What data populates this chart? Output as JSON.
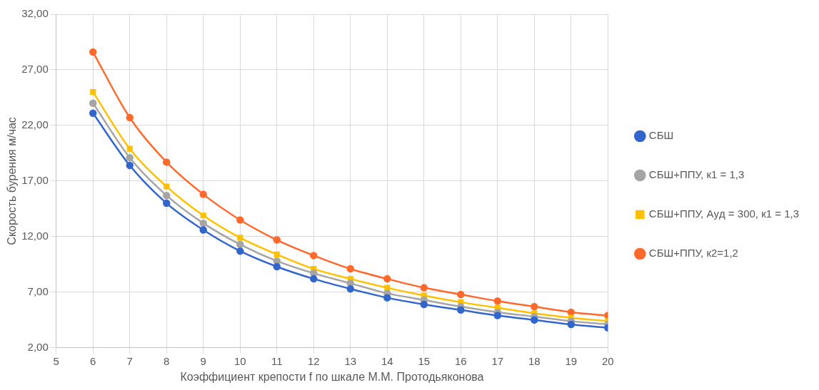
{
  "chart_data": {
    "type": "line",
    "xlabel": "Коэффициент крепости f по шкале М.М. Протодьяконова",
    "ylabel": "Скорость бурения м/час",
    "x": [
      6,
      7,
      8,
      9,
      10,
      11,
      12,
      13,
      14,
      15,
      16,
      17,
      18,
      19,
      20
    ],
    "xlim": [
      5,
      20
    ],
    "xticks": [
      5,
      6,
      7,
      8,
      9,
      10,
      11,
      12,
      13,
      14,
      15,
      16,
      17,
      18,
      19,
      20
    ],
    "ylim": [
      2,
      32
    ],
    "yticks": [
      {
        "value": 2,
        "label": "2,00"
      },
      {
        "value": 7,
        "label": "7,00"
      },
      {
        "value": 12,
        "label": "12,00"
      },
      {
        "value": 17,
        "label": "17,00"
      },
      {
        "value": 22,
        "label": "22,00"
      },
      {
        "value": 27,
        "label": "27,00"
      },
      {
        "value": 32,
        "label": "32,00"
      }
    ],
    "grid": true,
    "legend": "right",
    "series": [
      {
        "name": "СБШ",
        "color": "#3366cc",
        "marker": "circle",
        "values": [
          23.1,
          18.4,
          15.0,
          12.6,
          10.7,
          9.3,
          8.2,
          7.3,
          6.5,
          5.9,
          5.4,
          4.9,
          4.5,
          4.1,
          3.8
        ]
      },
      {
        "name": "СБШ+ППУ, к1 = 1,3",
        "color": "#a5a5a5",
        "marker": "circle",
        "values": [
          24.0,
          19.1,
          15.7,
          13.2,
          11.3,
          9.8,
          8.7,
          7.8,
          6.9,
          6.3,
          5.7,
          5.2,
          4.8,
          4.4,
          4.1
        ]
      },
      {
        "name": "СБШ+ППУ, Аyд = 300, к1 = 1,3",
        "color": "#ffc000",
        "marker": "square",
        "values": [
          25.0,
          19.9,
          16.5,
          13.9,
          11.9,
          10.4,
          9.1,
          8.2,
          7.4,
          6.7,
          6.1,
          5.6,
          5.1,
          4.7,
          4.4
        ]
      },
      {
        "name": "СБШ+ППУ, к2=1,2",
        "color": "#ff6a2c",
        "marker": "circle",
        "values": [
          28.6,
          22.7,
          18.7,
          15.8,
          13.5,
          11.7,
          10.3,
          9.1,
          8.2,
          7.4,
          6.8,
          6.2,
          5.7,
          5.2,
          4.9
        ]
      }
    ]
  }
}
